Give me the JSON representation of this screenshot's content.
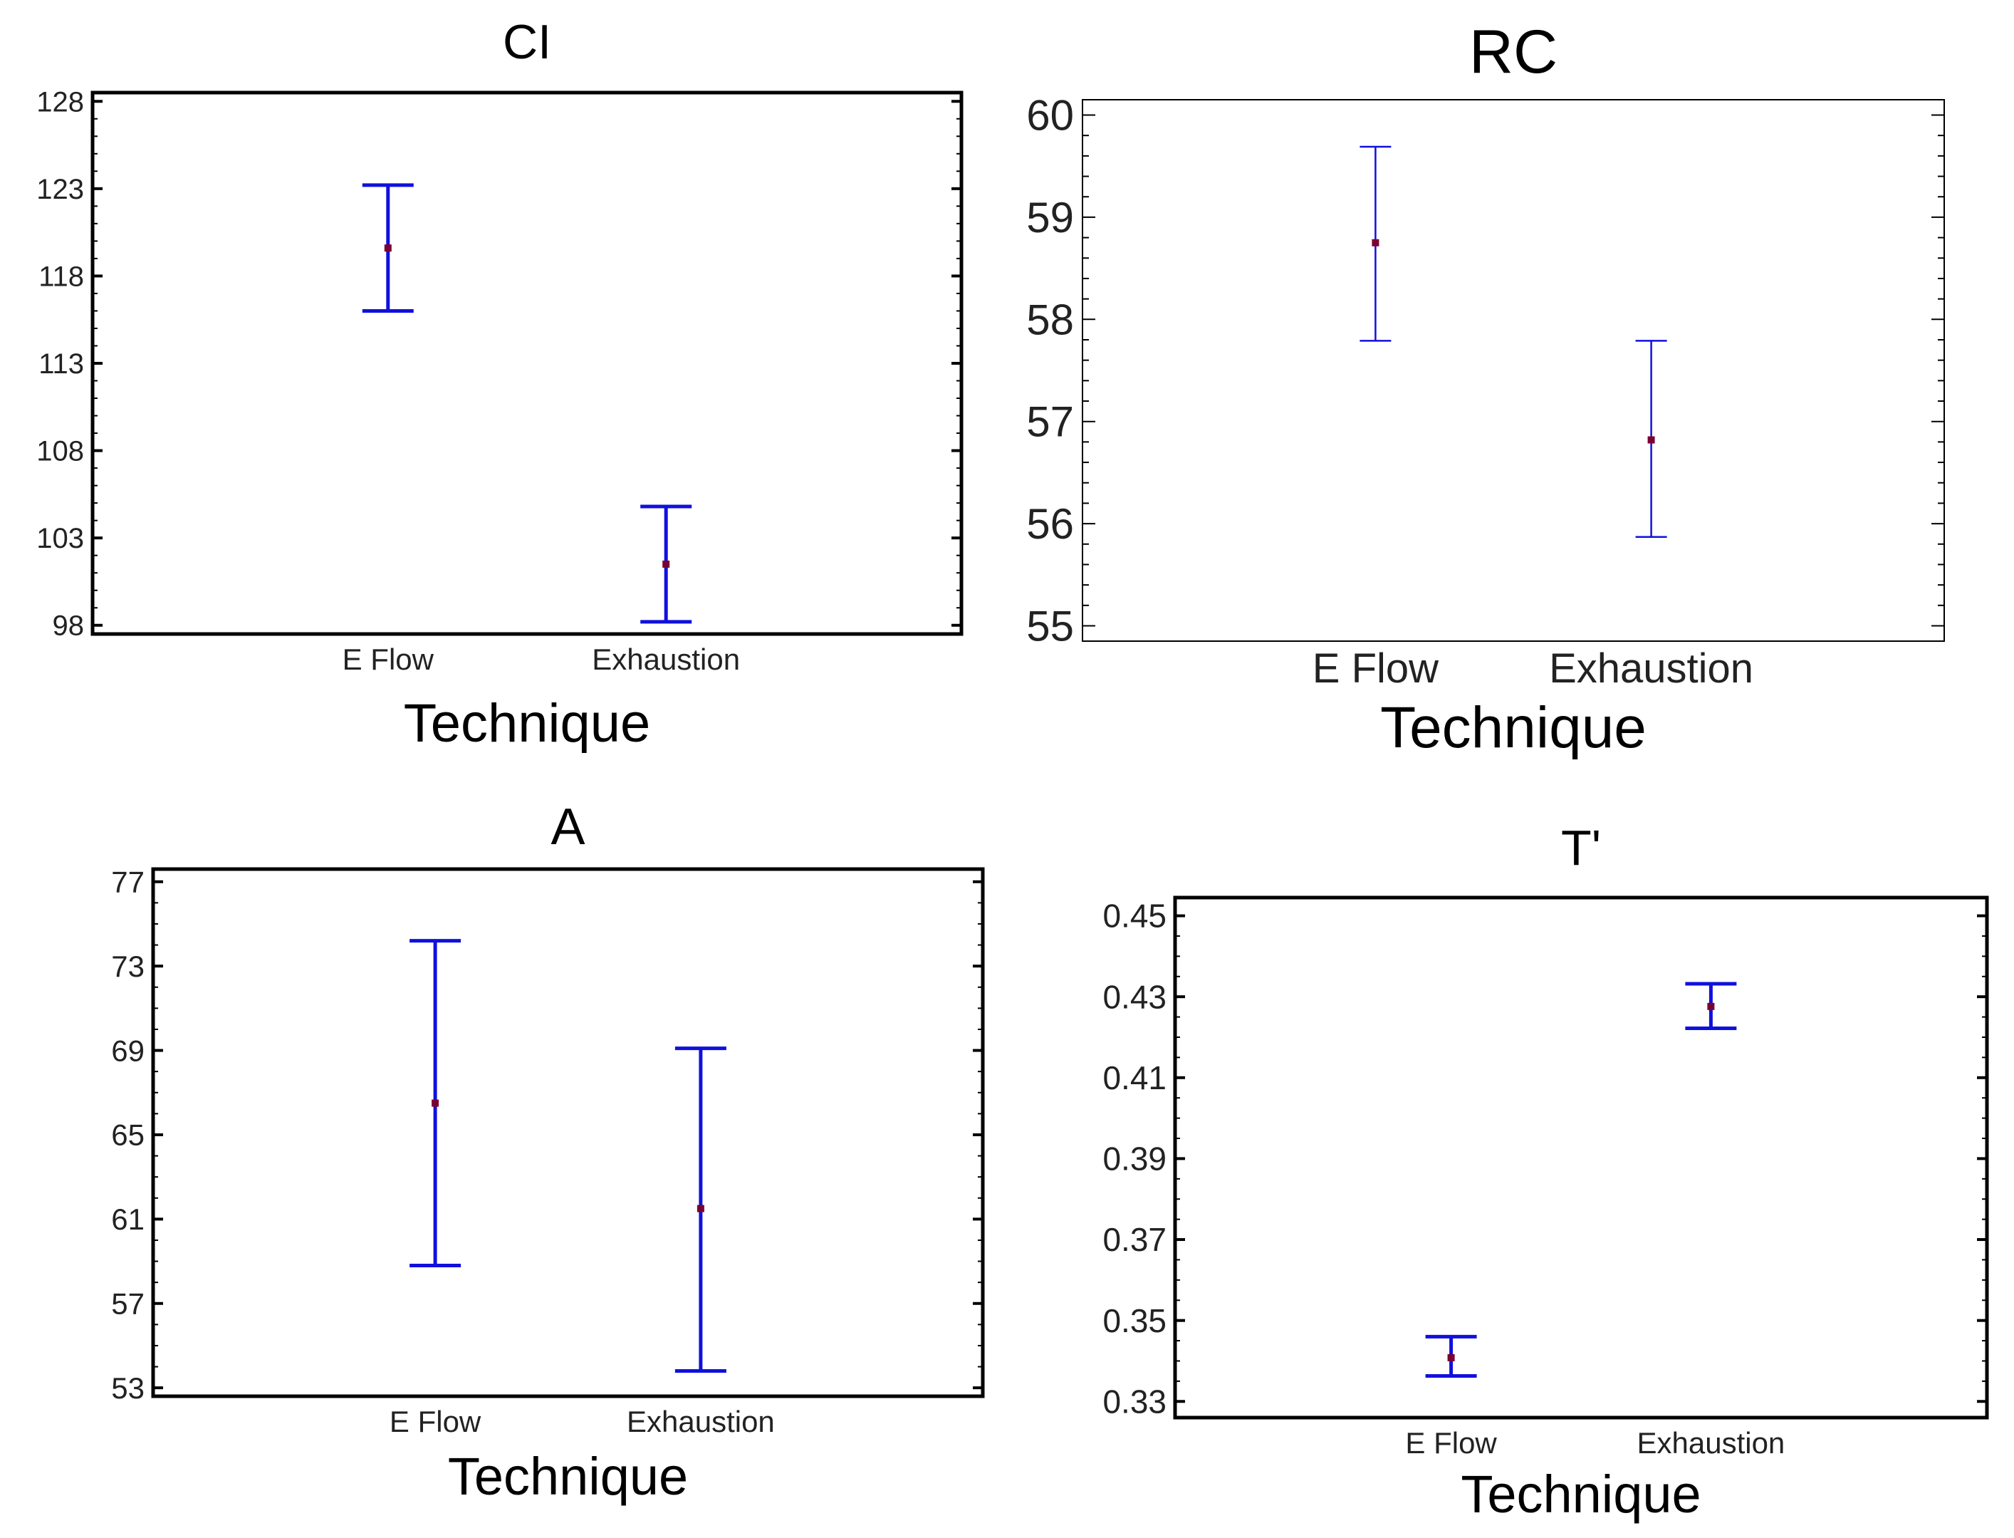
{
  "chart_data": [
    {
      "type": "errorbar",
      "title": "CI",
      "xlabel": "Technique",
      "ylabel": "",
      "categories": [
        "E Flow",
        "Exhaustion"
      ],
      "means": [
        119.6,
        101.5
      ],
      "lower": [
        116.0,
        98.2
      ],
      "upper": [
        123.2,
        104.8
      ],
      "ylim": [
        97.5,
        128.5
      ],
      "yticks": [
        98,
        103,
        108,
        113,
        118,
        123,
        128
      ],
      "ytick_labels": [
        "98",
        "103",
        "108",
        "113",
        "118",
        "123",
        "128"
      ]
    },
    {
      "type": "errorbar",
      "title": "RC",
      "xlabel": "Technique",
      "ylabel": "",
      "categories": [
        "E Flow",
        "Exhaustion"
      ],
      "means": [
        58.75,
        56.82
      ],
      "lower": [
        57.79,
        55.87
      ],
      "upper": [
        59.69,
        57.79
      ],
      "ylim": [
        54.85,
        60.15
      ],
      "yticks": [
        55,
        56,
        57,
        58,
        59,
        60
      ],
      "ytick_labels": [
        "55",
        "56",
        "57",
        "58",
        "59",
        "60"
      ]
    },
    {
      "type": "errorbar",
      "title": "A",
      "xlabel": "Technique",
      "ylabel": "",
      "categories": [
        "E Flow",
        "Exhaustion"
      ],
      "means": [
        66.5,
        61.5
      ],
      "lower": [
        58.8,
        53.8
      ],
      "upper": [
        74.2,
        69.1
      ],
      "ylim": [
        52.6,
        77.6
      ],
      "yticks": [
        53,
        57,
        61,
        65,
        69,
        73,
        77
      ],
      "ytick_labels": [
        "53",
        "57",
        "61",
        "65",
        "69",
        "73",
        "77"
      ]
    },
    {
      "type": "errorbar",
      "title": "T'",
      "xlabel": "Technique",
      "ylabel": "",
      "categories": [
        "E Flow",
        "Exhaustion"
      ],
      "means": [
        0.3408,
        0.4276
      ],
      "lower": [
        0.3363,
        0.4222
      ],
      "upper": [
        0.346,
        0.4332
      ],
      "ylim": [
        0.326,
        0.4545
      ],
      "yticks": [
        0.33,
        0.35,
        0.37,
        0.39,
        0.41,
        0.43,
        0.45
      ],
      "ytick_labels": [
        "0.33",
        "0.35",
        "0.37",
        "0.39",
        "0.41",
        "0.43",
        "0.45"
      ]
    }
  ],
  "colors": {
    "interval": "#1010dd",
    "mean_marker": "#7a0030",
    "axes": "#000000",
    "text": "#222222"
  }
}
